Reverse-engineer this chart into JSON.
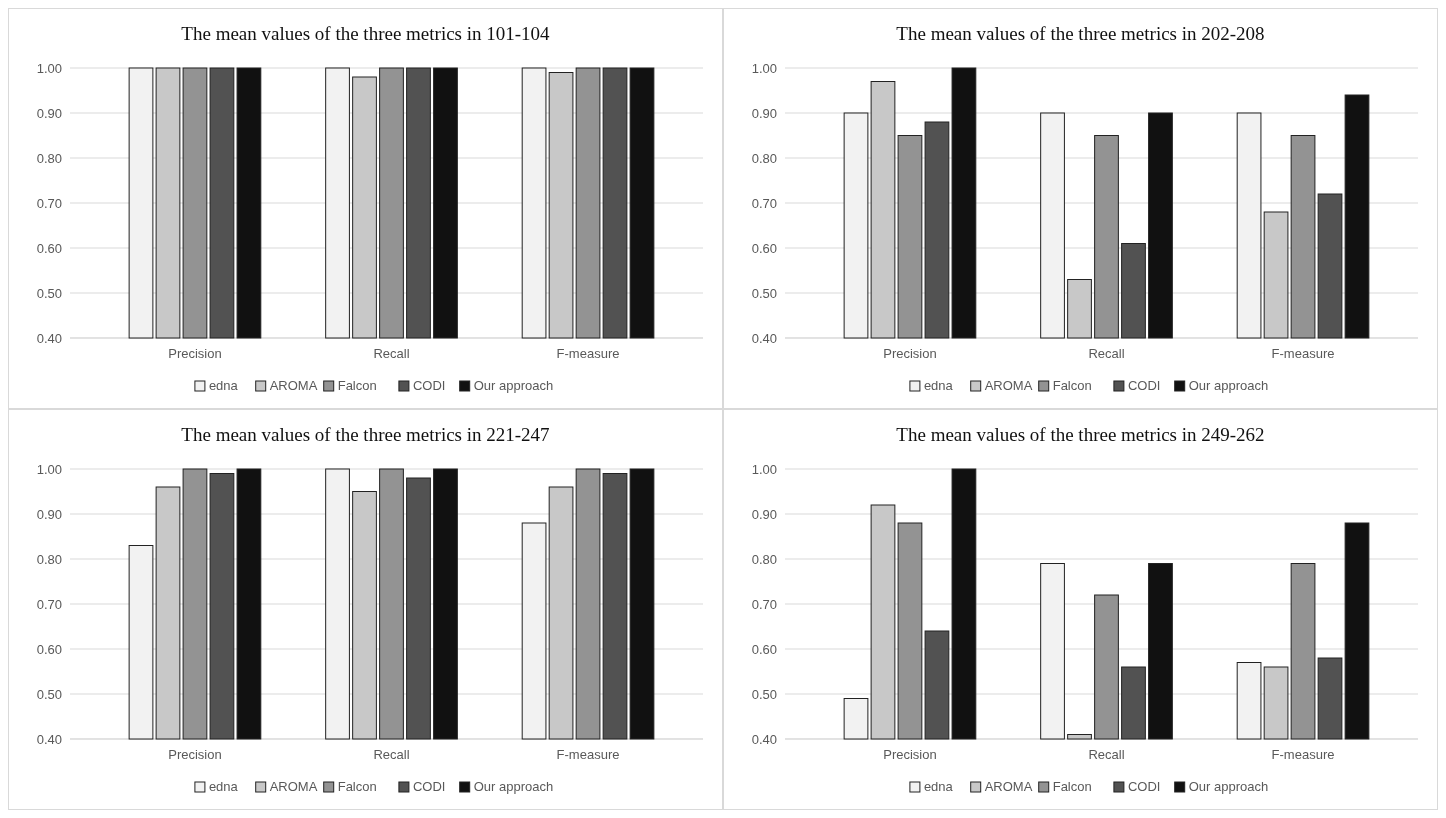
{
  "chart_data": [
    {
      "type": "bar",
      "title": "The mean values of the three metrics in 101-104",
      "categories": [
        "Precision",
        "Recall",
        "F-measure"
      ],
      "series": [
        {
          "name": "edna",
          "color": "#f2f2f2",
          "values": [
            1.0,
            1.0,
            1.0
          ]
        },
        {
          "name": "AROMA",
          "color": "#c8c8c8",
          "values": [
            1.0,
            0.98,
            0.99
          ]
        },
        {
          "name": "Falcon",
          "color": "#939393",
          "values": [
            1.0,
            1.0,
            1.0
          ]
        },
        {
          "name": "CODI",
          "color": "#525252",
          "values": [
            1.0,
            1.0,
            1.0
          ]
        },
        {
          "name": "Our approach",
          "color": "#111111",
          "values": [
            1.0,
            1.0,
            1.0
          ]
        }
      ],
      "ylim": [
        0.4,
        1.0
      ],
      "yticks": [
        {
          "value": 0.4,
          "label": "0.40"
        },
        {
          "value": 0.5,
          "label": "0.50"
        },
        {
          "value": 0.6,
          "label": "0.60"
        },
        {
          "value": 0.7,
          "label": "0.70"
        },
        {
          "value": 0.8,
          "label": "0.80"
        },
        {
          "value": 0.9,
          "label": "0.90"
        },
        {
          "value": 1.0,
          "label": "1.00"
        }
      ],
      "grid": "y",
      "legend": "bottom"
    },
    {
      "type": "bar",
      "title": "The mean values of the three metrics in 202-208",
      "categories": [
        "Precision",
        "Recall",
        "F-measure"
      ],
      "series": [
        {
          "name": "edna",
          "color": "#f2f2f2",
          "values": [
            0.9,
            0.9,
            0.9
          ]
        },
        {
          "name": "AROMA",
          "color": "#c8c8c8",
          "values": [
            0.97,
            0.53,
            0.68
          ]
        },
        {
          "name": "Falcon",
          "color": "#939393",
          "values": [
            0.85,
            0.85,
            0.85
          ]
        },
        {
          "name": "CODI",
          "color": "#525252",
          "values": [
            0.88,
            0.61,
            0.72
          ]
        },
        {
          "name": "Our approach",
          "color": "#111111",
          "values": [
            1.0,
            0.9,
            0.94
          ]
        }
      ],
      "ylim": [
        0.4,
        1.0
      ],
      "yticks": [
        {
          "value": 0.4,
          "label": "0.40"
        },
        {
          "value": 0.5,
          "label": "0.50"
        },
        {
          "value": 0.6,
          "label": "0.60"
        },
        {
          "value": 0.7,
          "label": "0.70"
        },
        {
          "value": 0.8,
          "label": "0.80"
        },
        {
          "value": 0.9,
          "label": "0.90"
        },
        {
          "value": 1.0,
          "label": "1.00"
        }
      ],
      "grid": "y",
      "legend": "bottom"
    },
    {
      "type": "bar",
      "title": "The mean values of the three metrics in 221-247",
      "categories": [
        "Precision",
        "Recall",
        "F-measure"
      ],
      "series": [
        {
          "name": "edna",
          "color": "#f2f2f2",
          "values": [
            0.83,
            1.0,
            0.88
          ]
        },
        {
          "name": "AROMA",
          "color": "#c8c8c8",
          "values": [
            0.96,
            0.95,
            0.96
          ]
        },
        {
          "name": "Falcon",
          "color": "#939393",
          "values": [
            1.0,
            1.0,
            1.0
          ]
        },
        {
          "name": "CODI",
          "color": "#525252",
          "values": [
            0.99,
            0.98,
            0.99
          ]
        },
        {
          "name": "Our approach",
          "color": "#111111",
          "values": [
            1.0,
            1.0,
            1.0
          ]
        }
      ],
      "ylim": [
        0.4,
        1.0
      ],
      "yticks": [
        {
          "value": 0.4,
          "label": "0.40"
        },
        {
          "value": 0.5,
          "label": "0.50"
        },
        {
          "value": 0.6,
          "label": "0.60"
        },
        {
          "value": 0.7,
          "label": "0.70"
        },
        {
          "value": 0.8,
          "label": "0.80"
        },
        {
          "value": 0.9,
          "label": "0.90"
        },
        {
          "value": 1.0,
          "label": "1.00"
        }
      ],
      "grid": "y",
      "legend": "bottom"
    },
    {
      "type": "bar",
      "title": "The mean values of the three metrics in 249-262",
      "categories": [
        "Precision",
        "Recall",
        "F-measure"
      ],
      "series": [
        {
          "name": "edna",
          "color": "#f2f2f2",
          "values": [
            0.49,
            0.79,
            0.57
          ]
        },
        {
          "name": "AROMA",
          "color": "#c8c8c8",
          "values": [
            0.92,
            0.41,
            0.56
          ]
        },
        {
          "name": "Falcon",
          "color": "#939393",
          "values": [
            0.88,
            0.72,
            0.79
          ]
        },
        {
          "name": "CODI",
          "color": "#525252",
          "values": [
            0.64,
            0.56,
            0.58
          ]
        },
        {
          "name": "Our approach",
          "color": "#111111",
          "values": [
            1.0,
            0.79,
            0.88
          ]
        }
      ],
      "ylim": [
        0.4,
        1.0
      ],
      "yticks": [
        {
          "value": 0.4,
          "label": "0.40"
        },
        {
          "value": 0.5,
          "label": "0.50"
        },
        {
          "value": 0.6,
          "label": "0.60"
        },
        {
          "value": 0.7,
          "label": "0.70"
        },
        {
          "value": 0.8,
          "label": "0.80"
        },
        {
          "value": 0.9,
          "label": "0.90"
        },
        {
          "value": 1.0,
          "label": "1.00"
        }
      ],
      "grid": "y",
      "legend": "bottom"
    }
  ]
}
